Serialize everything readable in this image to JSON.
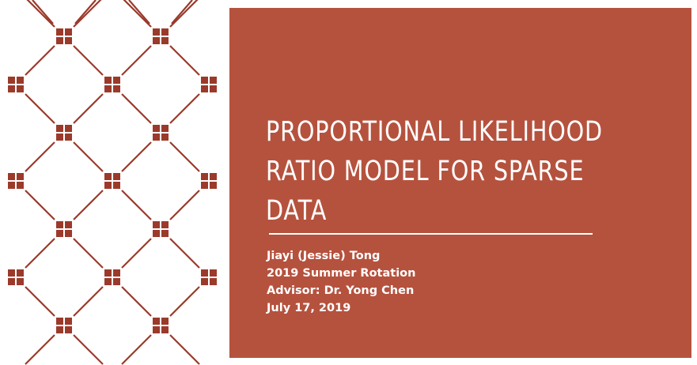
{
  "slide": {
    "title": "Proportional Likelihood Ratio Model for Sparse Data",
    "subtitle_lines": [
      "Jiayi (Jessie) Tong",
      "2019 Summer Rotation",
      "Advisor: Dr. Yong Chen",
      "July 17, 2019"
    ]
  },
  "colors": {
    "accent": "#b5523e",
    "pattern": "#9b3a2b",
    "text": "#ffffff",
    "background": "#ffffff"
  }
}
